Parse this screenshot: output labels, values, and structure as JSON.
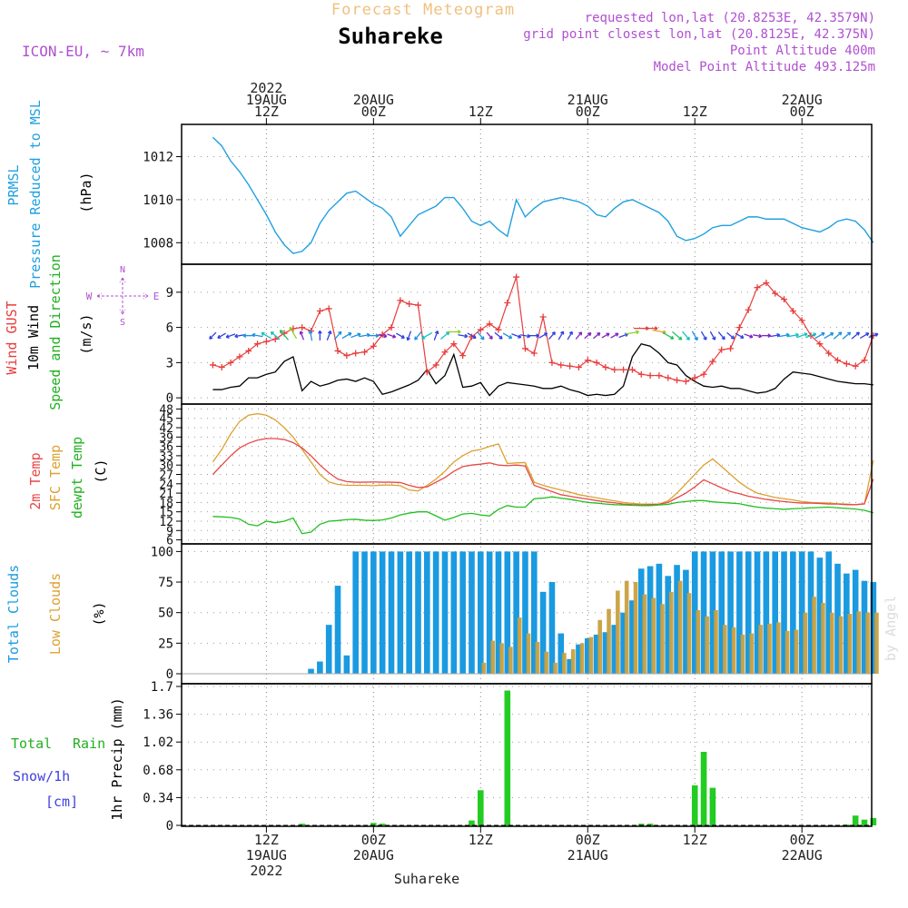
{
  "header": {
    "product": "Forecast Meteogram",
    "station": "Suhareke",
    "model": "ICON-EU, ~ 7km",
    "requested": "requested lon,lat (20.8253E, 42.3579N)",
    "grid": "grid point closest lon,lat (20.8125E, 42.375N)",
    "alt": "Point Altitude 400m",
    "model_alt": "Model Point Altitude 493.125m",
    "credit": "by Angel",
    "footer": "Suhareke"
  },
  "colors": {
    "prmsl": "#1fa0e0",
    "gust": "#e83c3c",
    "wind": "#000000",
    "t2m": "#e84848",
    "tsfc": "#dca030",
    "dew": "#20c020",
    "total_cloud": "#1a9ae0",
    "low_cloud": "#c8a040",
    "rain": "#22cc22",
    "snow": "#4040e0",
    "purple": "#b050d0",
    "title_orange": "#f0c080"
  },
  "chart_data": {
    "type": "meteogram",
    "time_axis": {
      "start": "2022-08-19 06Z",
      "step_hours": 1,
      "hours_shown": 75,
      "top_ticks": [
        {
          "h": 6,
          "lines": [
            "2022",
            "19AUG",
            "12Z"
          ]
        },
        {
          "h": 18,
          "lines": [
            "20AUG",
            "00Z"
          ]
        },
        {
          "h": 30,
          "lines": [
            "12Z"
          ]
        },
        {
          "h": 42,
          "lines": [
            "21AUG",
            "00Z"
          ]
        },
        {
          "h": 54,
          "lines": [
            "12Z"
          ]
        },
        {
          "h": 66,
          "lines": [
            "22AUG",
            "00Z"
          ]
        }
      ],
      "bottom_ticks": [
        {
          "h": 6,
          "lines": [
            "12Z",
            "19AUG",
            "2022"
          ]
        },
        {
          "h": 18,
          "lines": [
            "00Z",
            "20AUG"
          ]
        },
        {
          "h": 30,
          "lines": [
            "12Z"
          ]
        },
        {
          "h": 42,
          "lines": [
            "00Z",
            "21AUG"
          ]
        },
        {
          "h": 54,
          "lines": [
            "12Z"
          ]
        },
        {
          "h": 66,
          "lines": [
            "00Z",
            "22AUG"
          ]
        }
      ]
    },
    "panels": [
      {
        "id": "pressure",
        "ylabels": [
          "PRMSL",
          "Pressure Reduced to MSL",
          "(hPa)"
        ],
        "ylim": [
          1007.0,
          1013.5
        ],
        "yticks": [
          1008,
          1010,
          1012
        ],
        "series": [
          {
            "name": "PRMSL",
            "color_key": "prmsl",
            "values": [
              1012.9,
              1012.5,
              1011.8,
              1011.3,
              1010.7,
              1010.0,
              1009.3,
              1008.5,
              1007.9,
              1007.5,
              1007.6,
              1008.0,
              1008.9,
              1009.5,
              1009.9,
              1010.3,
              1010.4,
              1010.1,
              1009.8,
              1009.6,
              1009.2,
              1008.3,
              1008.8,
              1009.3,
              1009.5,
              1009.7,
              1010.1,
              1010.1,
              1009.6,
              1009.0,
              1008.8,
              1009.0,
              1008.6,
              1008.3,
              1010.0,
              1009.2,
              1009.6,
              1009.9,
              1010.0,
              1010.1,
              1010.0,
              1009.9,
              1009.7,
              1009.3,
              1009.2,
              1009.6,
              1009.9,
              1010.0,
              1009.8,
              1009.6,
              1009.4,
              1009.0,
              1008.3,
              1008.1,
              1008.2,
              1008.4,
              1008.7,
              1008.8,
              1008.8,
              1009.0,
              1009.2,
              1009.2,
              1009.1,
              1009.1,
              1009.1,
              1008.9,
              1008.7,
              1008.6,
              1008.5,
              1008.7,
              1009.0,
              1009.1,
              1009.0,
              1008.6,
              1008.0
            ]
          }
        ]
      },
      {
        "id": "wind",
        "ylabels": [
          "Wind GUST",
          "10m Wind",
          "Speed and Direction",
          "(m/s)"
        ],
        "compass": {
          "n": "N",
          "s": "S",
          "w": "W",
          "e": "E"
        },
        "ylim": [
          -0.3,
          11
        ],
        "yticks": [
          0,
          3,
          6,
          9
        ],
        "series": [
          {
            "name": "Wind GUST",
            "color_key": "gust",
            "marker": "plus",
            "values": [
              2.8,
              2.6,
              3.0,
              3.5,
              4.0,
              4.6,
              4.8,
              5.0,
              5.5,
              5.9,
              6.0,
              5.7,
              7.4,
              7.6,
              4.0,
              3.6,
              3.8,
              3.9,
              4.4,
              5.4,
              6.0,
              8.3,
              8.0,
              7.9,
              2.2,
              2.8,
              3.9,
              4.6,
              3.6,
              5.2,
              5.8,
              6.3,
              5.8,
              8.1,
              10.3,
              4.2,
              3.8,
              6.9,
              3.0,
              2.8,
              2.7,
              2.6,
              3.2,
              3.0,
              2.6,
              2.4,
              2.4,
              2.4,
              2.0,
              1.9,
              1.9,
              1.7,
              1.5,
              1.4,
              1.7,
              2.0,
              3.1,
              4.1,
              4.2,
              6.0,
              7.5,
              9.4,
              9.8,
              8.9,
              8.4,
              7.4,
              6.6,
              5.3,
              4.6,
              3.8,
              3.2,
              2.9,
              2.7,
              3.2,
              5.3
            ]
          },
          {
            "name": "10m Wind",
            "color_key": "wind",
            "values": [
              0.7,
              0.7,
              0.9,
              1.0,
              1.7,
              1.7,
              2.0,
              2.2,
              3.1,
              3.5,
              0.6,
              1.4,
              1.0,
              1.2,
              1.5,
              1.6,
              1.4,
              1.7,
              1.4,
              0.3,
              0.5,
              0.8,
              1.1,
              1.5,
              2.4,
              1.2,
              1.9,
              3.7,
              0.9,
              1.0,
              1.3,
              0.2,
              1.0,
              1.3,
              1.2,
              1.1,
              1.0,
              0.8,
              0.8,
              1.0,
              0.7,
              0.5,
              0.2,
              0.3,
              0.2,
              0.3,
              1.0,
              3.5,
              4.6,
              4.4,
              3.8,
              3.0,
              2.8,
              1.9,
              1.4,
              1.0,
              0.9,
              1.0,
              0.8,
              0.8,
              0.6,
              0.4,
              0.5,
              0.8,
              1.6,
              2.2,
              2.1,
              2.0,
              1.8,
              1.6,
              1.4,
              1.3,
              1.2,
              1.2,
              1.1
            ]
          }
        ],
        "wind_barbs_level": 5.3,
        "wind_dir_deg": [
          45,
          60,
          70,
          80,
          90,
          100,
          120,
          130,
          140,
          150,
          160,
          170,
          180,
          200,
          220,
          240,
          250,
          260,
          270,
          280,
          290,
          300,
          20,
          40,
          60,
          200,
          230,
          270,
          280,
          300,
          320,
          320,
          310,
          300,
          290,
          280,
          270,
          240,
          220,
          210,
          210,
          220,
          230,
          230,
          240,
          240,
          250,
          260,
          270,
          270,
          280,
          300,
          310,
          320,
          330,
          330,
          330,
          320,
          310,
          300,
          290,
          280,
          270,
          260,
          260,
          260,
          250,
          250,
          240,
          240,
          230,
          230,
          230,
          240,
          250
        ]
      },
      {
        "id": "temperature",
        "ylabels": [
          "2m Temp",
          "SFC Temp",
          "dewpt Temp",
          "(C)"
        ],
        "ylim": [
          5,
          49
        ],
        "yticks": [
          6,
          9,
          12,
          15,
          18,
          21,
          24,
          27,
          30,
          33,
          36,
          39,
          42,
          45,
          48
        ],
        "series": [
          {
            "name": "2m Temp",
            "color_key": "t2m",
            "values": [
              27,
              30,
              33,
              35.5,
              37,
              38,
              38.5,
              38.5,
              38.2,
              37.2,
              35.5,
              33,
              30,
              27.5,
              25.5,
              24.7,
              24.5,
              24.5,
              24.6,
              24.5,
              24.5,
              24.4,
              23.5,
              22.8,
              23,
              24.5,
              26,
              28,
              29.5,
              30,
              30.3,
              30.7,
              30,
              29.8,
              30,
              29.7,
              23.5,
              22.5,
              21.5,
              20.5,
              20,
              19.5,
              19.1,
              18.6,
              18.2,
              17.9,
              17.5,
              17.3,
              17.2,
              17.3,
              17.4,
              18,
              19.5,
              21,
              23,
              25.3,
              24,
              22.7,
              21.5,
              20.8,
              20,
              19.5,
              19,
              18.6,
              18.3,
              18,
              17.8,
              17.8,
              17.7,
              17.5,
              17.5,
              17.3,
              17.3,
              17.6,
              25.5
            ]
          },
          {
            "name": "SFC Temp",
            "color_key": "tsfc",
            "values": [
              31,
              35,
              40,
              44,
              46,
              46.5,
              46,
              44.5,
              42,
              39,
              35,
              31,
              27,
              24.6,
              23.8,
              23.5,
              23.5,
              23.5,
              23.4,
              23.6,
              23.6,
              23.4,
              22,
              21.7,
              23.5,
              25.5,
              28,
              31,
              33,
              34.5,
              35,
              36,
              36.8,
              30.5,
              30.7,
              30.8,
              24.5,
              23.5,
              22.7,
              22,
              21.3,
              20.5,
              20,
              19.5,
              19,
              18.5,
              18,
              17.7,
              17.5,
              17.5,
              17.5,
              18.5,
              21,
              24,
              27,
              30,
              32,
              29.5,
              27,
              24.5,
              22.5,
              21,
              20.3,
              19.6,
              19.2,
              18.8,
              18.3,
              18,
              17.9,
              17.8,
              17.6,
              17.5,
              17.3,
              17.5,
              31.5
            ]
          },
          {
            "name": "dewpt Temp",
            "color_key": "dew",
            "values": [
              13.5,
              13.4,
              13.2,
              12.7,
              11,
              10.5,
              12,
              11.5,
              12,
              13,
              8,
              8.5,
              11,
              12,
              12.2,
              12.5,
              12.6,
              12.3,
              12.2,
              12.4,
              13,
              14,
              14.6,
              15,
              15,
              13.7,
              12.3,
              13.2,
              14.3,
              14.5,
              14,
              13.7,
              15.8,
              17,
              16.5,
              16.5,
              19.2,
              19.4,
              19.8,
              19.4,
              19,
              18.5,
              18,
              17.8,
              17.5,
              17.3,
              17.2,
              17.1,
              17,
              17,
              17.2,
              17.4,
              18,
              18.3,
              18.6,
              18.6,
              18.2,
              18,
              17.8,
              17.6,
              17,
              16.5,
              16.2,
              16,
              15.8,
              16,
              16.1,
              16.3,
              16.4,
              16.5,
              16.3,
              16.1,
              15.9,
              15.5,
              14.7
            ]
          }
        ]
      },
      {
        "id": "clouds",
        "ylabels": [
          "Total Clouds",
          "Low Clouds",
          "(%)"
        ],
        "ylim": [
          0,
          104
        ],
        "yticks": [
          0,
          25,
          50,
          75,
          100
        ],
        "bars": [
          {
            "name": "Total Clouds",
            "color_key": "total_cloud",
            "values": [
              0,
              0,
              0,
              0,
              0,
              0,
              0,
              0,
              0,
              0,
              0,
              4,
              10,
              40,
              72,
              15,
              100,
              100,
              100,
              100,
              100,
              100,
              100,
              100,
              100,
              100,
              100,
              100,
              100,
              100,
              100,
              100,
              100,
              100,
              100,
              100,
              100,
              67,
              75,
              33,
              12,
              24,
              29,
              32,
              34,
              40,
              50,
              60,
              86,
              88,
              90,
              80,
              89,
              85,
              100,
              100,
              100,
              100,
              100,
              100,
              100,
              100,
              100,
              100,
              100,
              100,
              100,
              100,
              95,
              100,
              90,
              82,
              85,
              76,
              75
            ]
          },
          {
            "name": "Low Clouds",
            "color_key": "low_cloud",
            "values": [
              0,
              0,
              0,
              0,
              0,
              0,
              0,
              0,
              0,
              0,
              0,
              0,
              0,
              0,
              0,
              0,
              0,
              0,
              0,
              0,
              0,
              0,
              0,
              0,
              0,
              0,
              0,
              0,
              0,
              0,
              9,
              27,
              25,
              22,
              46,
              33,
              26,
              18,
              9,
              17,
              20,
              25,
              30,
              44,
              53,
              68,
              76,
              75,
              65,
              62,
              57,
              67,
              76,
              66,
              52,
              47,
              52,
              40,
              38,
              32,
              33,
              40,
              41,
              42,
              35,
              36,
              50,
              63,
              58,
              50,
              47,
              49,
              51,
              50,
              50
            ]
          }
        ],
        "stacked_bar_pairs": true
      },
      {
        "id": "precip",
        "ylabels": [
          "Total",
          "Rain",
          "Snow/1h",
          "[cm]",
          "1hr Precip (mm)"
        ],
        "ylim": [
          0,
          1.7
        ],
        "yticks": [
          0,
          0.34,
          0.68,
          1.02,
          1.36,
          1.7
        ],
        "ytick_labels": [
          "0",
          "0.34",
          "0.68",
          "1.02",
          "1.36",
          "1.7"
        ],
        "bars": [
          {
            "name": "Total Rain",
            "color_key": "rain",
            "values": [
              0,
              0,
              0,
              0,
              0,
              0,
              0,
              0,
              0,
              0,
              0.02,
              0,
              0,
              0,
              0,
              0,
              0,
              0,
              0.03,
              0.02,
              0,
              0,
              0,
              0,
              0,
              0,
              0,
              0,
              0,
              0.06,
              0.43,
              0,
              0,
              1.65,
              0,
              0,
              0,
              0,
              0,
              0,
              0,
              0,
              0,
              0,
              0,
              0,
              0,
              0,
              0.02,
              0.02,
              0,
              0,
              0,
              0,
              0.49,
              0.9,
              0.46,
              0,
              0,
              0,
              0,
              0,
              0,
              0,
              0,
              0,
              0,
              0,
              0,
              0,
              0,
              0.01,
              0.12,
              0.07,
              0.09
            ]
          }
        ]
      }
    ]
  }
}
